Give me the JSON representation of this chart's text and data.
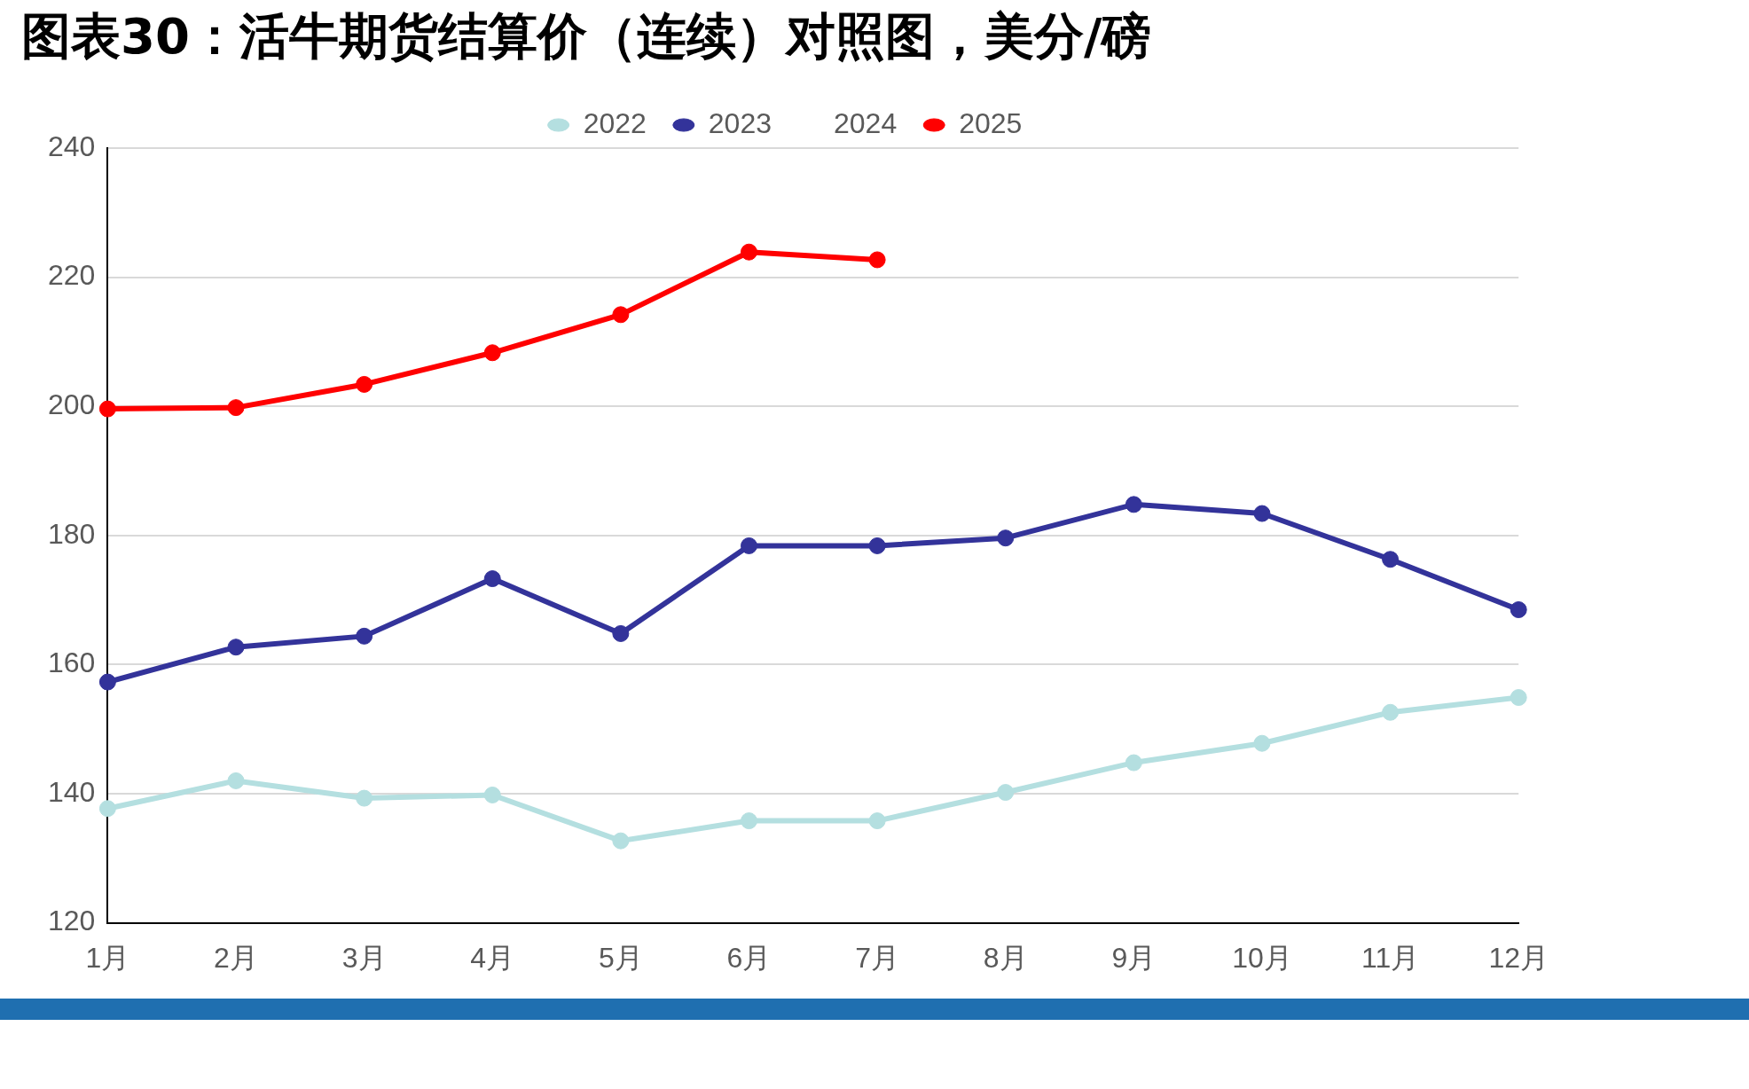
{
  "chart_data": {
    "type": "line",
    "title": "图表30：活牛期货结算价（连续）对照图，美分/磅",
    "categories": [
      "1月",
      "2月",
      "3月",
      "4月",
      "5月",
      "6月",
      "7月",
      "8月",
      "9月",
      "10月",
      "11月",
      "12月"
    ],
    "series": [
      {
        "name": "2022",
        "color": "#b4dfe0",
        "values": [
          137.7,
          142.0,
          139.3,
          139.8,
          132.7,
          135.8,
          135.8,
          140.2,
          144.8,
          147.8,
          152.6,
          154.9
        ]
      },
      {
        "name": "2023",
        "color": "#33339a",
        "values": [
          157.3,
          162.7,
          164.4,
          173.3,
          164.8,
          178.4,
          178.4,
          179.6,
          184.8,
          183.4,
          176.3,
          168.5
        ]
      },
      {
        "name": "2024",
        "values": [
          null,
          null,
          null,
          null,
          null,
          null,
          null,
          null,
          null,
          null,
          null,
          null
        ]
      },
      {
        "name": "2025",
        "color": "#ff0000",
        "values": [
          199.6,
          199.8,
          203.4,
          208.3,
          214.2,
          223.9,
          222.7,
          null,
          null,
          null,
          null,
          null
        ]
      }
    ],
    "ylim": [
      120,
      240
    ],
    "yticks": [
      120,
      140,
      160,
      180,
      200,
      220,
      240
    ],
    "grid": "y",
    "legend": "top",
    "marker": "circle",
    "line_style": "solid"
  }
}
